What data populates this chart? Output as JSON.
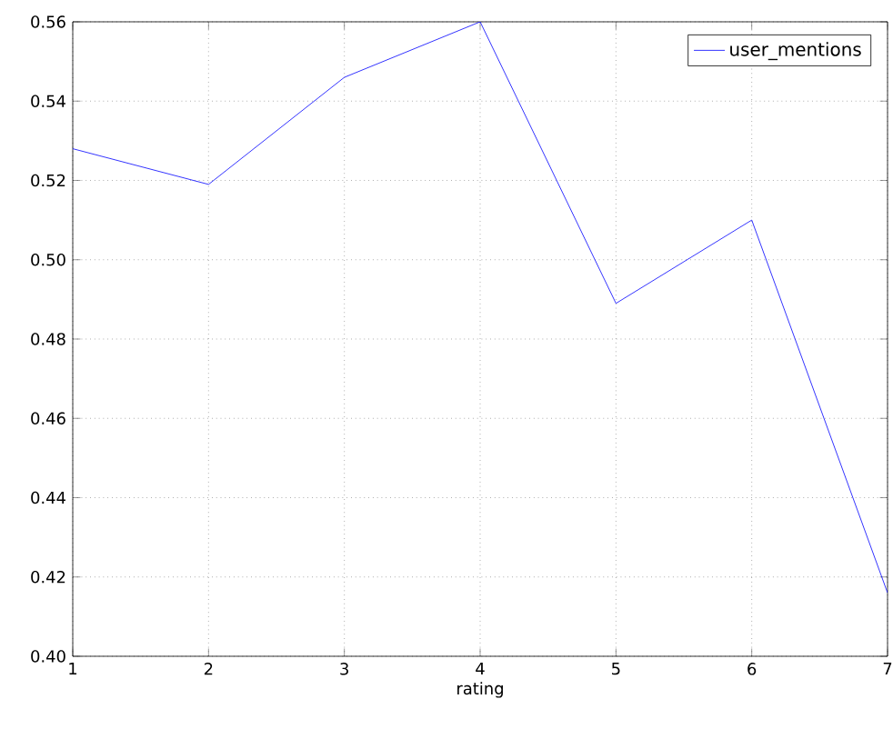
{
  "chart_data": {
    "type": "line",
    "xlabel": "rating",
    "x": [
      1,
      2,
      3,
      4,
      5,
      6,
      7
    ],
    "series": [
      {
        "name": "user_mentions",
        "color": "#0000ff",
        "values": [
          0.528,
          0.519,
          0.546,
          0.56,
          0.489,
          0.51,
          0.416
        ]
      }
    ],
    "xlim": [
      1,
      7
    ],
    "xticks": [
      1,
      2,
      3,
      4,
      5,
      6,
      7
    ],
    "ylim": [
      0.4,
      0.56
    ],
    "yticks": [
      {
        "value": 0.4,
        "label": "0.40"
      },
      {
        "value": 0.42,
        "label": "0.42"
      },
      {
        "value": 0.44,
        "label": "0.44"
      },
      {
        "value": 0.46,
        "label": "0.46"
      },
      {
        "value": 0.48,
        "label": "0.48"
      },
      {
        "value": 0.5,
        "label": "0.50"
      },
      {
        "value": 0.52,
        "label": "0.52"
      },
      {
        "value": 0.54,
        "label": "0.54"
      },
      {
        "value": 0.56,
        "label": "0.56"
      }
    ],
    "grid": true,
    "legend": "top right",
    "marker": "none",
    "line_style": "solid"
  }
}
